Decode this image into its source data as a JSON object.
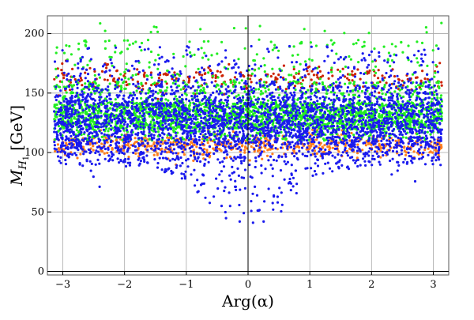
{
  "chart_data": {
    "type": "scatter",
    "title": "",
    "xlabel": "Arg(α)",
    "ylabel_main": "M",
    "ylabel_sub": "H",
    "ylabel_subsub": "1",
    "ylabel_unit": "[GeV]",
    "xlim": [
      -3.25,
      3.25
    ],
    "ylim": [
      -3,
      215
    ],
    "xticks": [
      -3,
      -2,
      -1,
      0,
      1,
      2,
      3
    ],
    "yticks": [
      0,
      50,
      100,
      150,
      200
    ],
    "grid": true,
    "series": [
      {
        "color": "#ff7f1e"
      },
      {
        "color": "#cc2200"
      },
      {
        "color": "#22ee22"
      },
      {
        "color": "#1a1aee"
      }
    ]
  }
}
